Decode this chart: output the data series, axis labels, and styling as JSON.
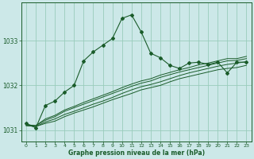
{
  "background_color": "#cce8e8",
  "grid_color": "#99ccbb",
  "line_color": "#1a5c2a",
  "xlim": [
    -0.5,
    23.5
  ],
  "ylim": [
    1030.75,
    1033.85
  ],
  "yticks": [
    1031,
    1032,
    1033
  ],
  "xticks": [
    0,
    1,
    2,
    3,
    4,
    5,
    6,
    7,
    8,
    9,
    10,
    11,
    12,
    13,
    14,
    15,
    16,
    17,
    18,
    19,
    20,
    21,
    22,
    23
  ],
  "xlabel": "Graphe pression niveau de la mer (hPa)",
  "bg_series": [
    [
      1031.1,
      1031.08,
      1031.15,
      1031.2,
      1031.3,
      1031.38,
      1031.45,
      1031.52,
      1031.6,
      1031.68,
      1031.75,
      1031.82,
      1031.9,
      1031.95,
      1032.0,
      1032.08,
      1032.15,
      1032.2,
      1032.25,
      1032.3,
      1032.35,
      1032.38,
      1032.4,
      1032.45
    ],
    [
      1031.1,
      1031.08,
      1031.18,
      1031.25,
      1031.35,
      1031.42,
      1031.5,
      1031.58,
      1031.65,
      1031.73,
      1031.82,
      1031.9,
      1031.97,
      1032.02,
      1032.08,
      1032.15,
      1032.22,
      1032.28,
      1032.33,
      1032.38,
      1032.43,
      1032.47,
      1032.5,
      1032.53
    ],
    [
      1031.12,
      1031.1,
      1031.22,
      1031.3,
      1031.42,
      1031.5,
      1031.58,
      1031.66,
      1031.74,
      1031.82,
      1031.9,
      1031.98,
      1032.05,
      1032.1,
      1032.18,
      1032.24,
      1032.3,
      1032.35,
      1032.4,
      1032.45,
      1032.5,
      1032.55,
      1032.56,
      1032.6
    ],
    [
      1031.12,
      1031.1,
      1031.25,
      1031.33,
      1031.45,
      1031.53,
      1031.62,
      1031.7,
      1031.78,
      1031.86,
      1031.95,
      1032.03,
      1032.1,
      1032.15,
      1032.23,
      1032.29,
      1032.35,
      1032.4,
      1032.46,
      1032.5,
      1032.55,
      1032.6,
      1032.6,
      1032.65
    ]
  ],
  "main_x": [
    0,
    1,
    2,
    3,
    4,
    5,
    6,
    7,
    8,
    9,
    10,
    11,
    12,
    13,
    14,
    15,
    16,
    17,
    18,
    19,
    20,
    21,
    22,
    23
  ],
  "main_y": [
    1031.15,
    1031.05,
    1031.55,
    1031.65,
    1031.85,
    1032.0,
    1032.55,
    1032.75,
    1032.9,
    1033.05,
    1033.5,
    1033.58,
    1033.2,
    1032.72,
    1032.62,
    1032.45,
    1032.38,
    1032.5,
    1032.52,
    1032.47,
    1032.52,
    1032.28,
    1032.52,
    1032.52
  ]
}
